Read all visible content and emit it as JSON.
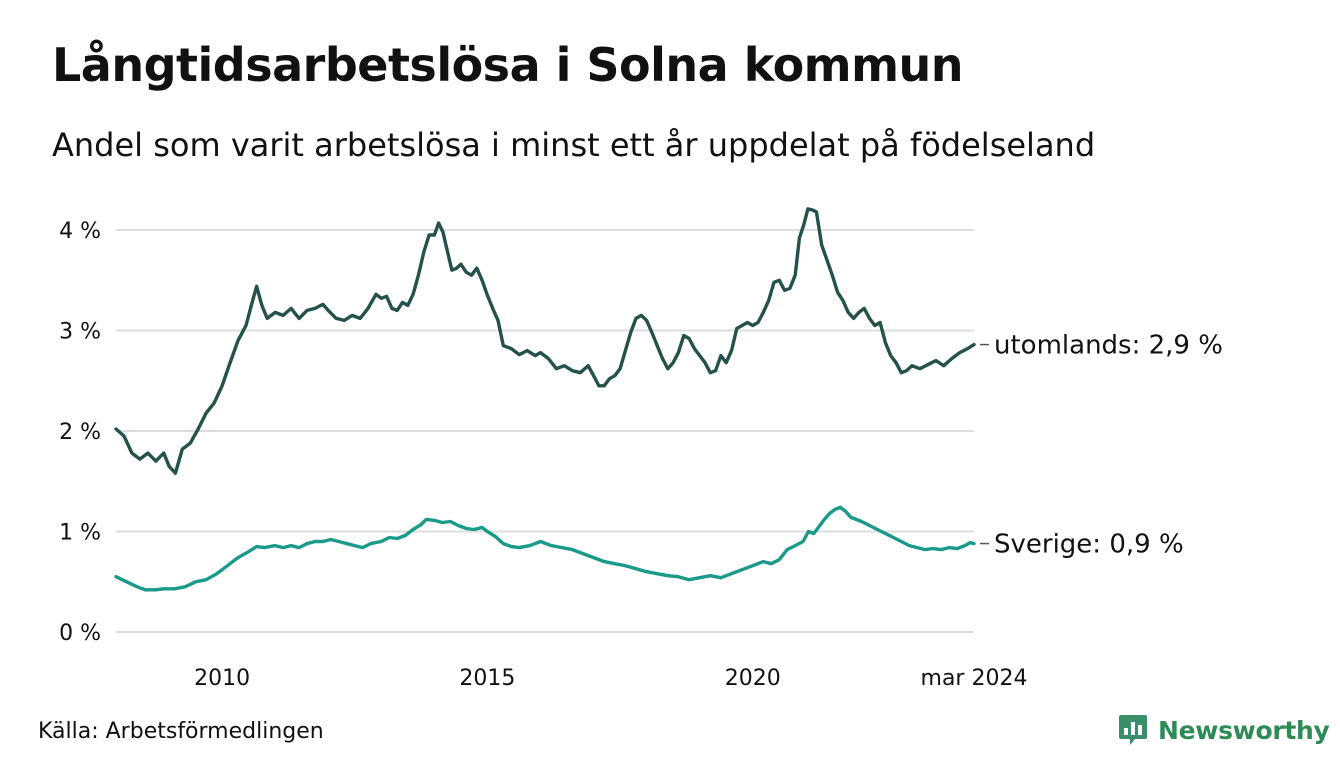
{
  "title": "Långtidsarbetslösa i Solna kommun",
  "subtitle": "Andel som varit arbetslösa i minst ett år uppdelat på födelseland",
  "source": "Källa: Arbetsförmedlingen",
  "brand": {
    "name": "Newsworthy",
    "icon": "newsworthy-logo-icon",
    "color": "#2e8b57"
  },
  "colors": {
    "utomlands": "#24524a",
    "sverige": "#1a9a88",
    "grid": "#dddddd",
    "text": "#111111"
  },
  "chart_data": {
    "type": "line",
    "title": "Långtidsarbetslösa i Solna kommun",
    "xlabel": "",
    "ylabel": "",
    "xlim": [
      2008.0,
      2024.17
    ],
    "ylim": [
      0,
      4
    ],
    "y_ticks": [
      {
        "value": 0,
        "label": "0 %"
      },
      {
        "value": 1,
        "label": "1 %"
      },
      {
        "value": 2,
        "label": "2 %"
      },
      {
        "value": 3,
        "label": "3 %"
      },
      {
        "value": 4,
        "label": "4 %"
      }
    ],
    "x_ticks": [
      {
        "value": 2010,
        "label": "2010"
      },
      {
        "value": 2015,
        "label": "2015"
      },
      {
        "value": 2020,
        "label": "2020"
      },
      {
        "value": 2024.17,
        "label": "mar 2024"
      }
    ],
    "grid": true,
    "series": [
      {
        "name": "utomlands",
        "end_label": "utomlands: 2,9 %",
        "color": "#24524a",
        "points": [
          [
            2008.0,
            2.02
          ],
          [
            2008.15,
            1.95
          ],
          [
            2008.3,
            1.78
          ],
          [
            2008.45,
            1.72
          ],
          [
            2008.6,
            1.78
          ],
          [
            2008.75,
            1.7
          ],
          [
            2008.9,
            1.78
          ],
          [
            2009.0,
            1.65
          ],
          [
            2009.12,
            1.58
          ],
          [
            2009.25,
            1.82
          ],
          [
            2009.4,
            1.88
          ],
          [
            2009.55,
            2.02
          ],
          [
            2009.7,
            2.18
          ],
          [
            2009.85,
            2.28
          ],
          [
            2010.0,
            2.45
          ],
          [
            2010.15,
            2.68
          ],
          [
            2010.3,
            2.9
          ],
          [
            2010.45,
            3.05
          ],
          [
            2010.55,
            3.25
          ],
          [
            2010.65,
            3.44
          ],
          [
            2010.75,
            3.25
          ],
          [
            2010.85,
            3.12
          ],
          [
            2011.0,
            3.18
          ],
          [
            2011.15,
            3.15
          ],
          [
            2011.3,
            3.22
          ],
          [
            2011.45,
            3.12
          ],
          [
            2011.6,
            3.2
          ],
          [
            2011.75,
            3.22
          ],
          [
            2011.9,
            3.26
          ],
          [
            2012.0,
            3.2
          ],
          [
            2012.15,
            3.12
          ],
          [
            2012.3,
            3.1
          ],
          [
            2012.45,
            3.15
          ],
          [
            2012.6,
            3.12
          ],
          [
            2012.75,
            3.22
          ],
          [
            2012.9,
            3.36
          ],
          [
            2013.0,
            3.32
          ],
          [
            2013.1,
            3.34
          ],
          [
            2013.2,
            3.22
          ],
          [
            2013.3,
            3.2
          ],
          [
            2013.4,
            3.28
          ],
          [
            2013.5,
            3.25
          ],
          [
            2013.6,
            3.36
          ],
          [
            2013.7,
            3.55
          ],
          [
            2013.8,
            3.78
          ],
          [
            2013.9,
            3.95
          ],
          [
            2014.0,
            3.95
          ],
          [
            2014.08,
            4.07
          ],
          [
            2014.16,
            3.98
          ],
          [
            2014.25,
            3.78
          ],
          [
            2014.33,
            3.6
          ],
          [
            2014.42,
            3.62
          ],
          [
            2014.5,
            3.66
          ],
          [
            2014.6,
            3.58
          ],
          [
            2014.7,
            3.55
          ],
          [
            2014.8,
            3.62
          ],
          [
            2014.9,
            3.5
          ],
          [
            2015.0,
            3.35
          ],
          [
            2015.1,
            3.22
          ],
          [
            2015.2,
            3.1
          ],
          [
            2015.3,
            2.85
          ],
          [
            2015.45,
            2.82
          ],
          [
            2015.6,
            2.76
          ],
          [
            2015.75,
            2.8
          ],
          [
            2015.9,
            2.75
          ],
          [
            2016.0,
            2.78
          ],
          [
            2016.15,
            2.72
          ],
          [
            2016.3,
            2.62
          ],
          [
            2016.45,
            2.65
          ],
          [
            2016.6,
            2.6
          ],
          [
            2016.75,
            2.58
          ],
          [
            2016.9,
            2.65
          ],
          [
            2017.0,
            2.55
          ],
          [
            2017.1,
            2.45
          ],
          [
            2017.2,
            2.45
          ],
          [
            2017.3,
            2.52
          ],
          [
            2017.4,
            2.55
          ],
          [
            2017.5,
            2.62
          ],
          [
            2017.6,
            2.8
          ],
          [
            2017.7,
            2.98
          ],
          [
            2017.8,
            3.12
          ],
          [
            2017.9,
            3.15
          ],
          [
            2018.0,
            3.1
          ],
          [
            2018.1,
            2.98
          ],
          [
            2018.2,
            2.85
          ],
          [
            2018.3,
            2.72
          ],
          [
            2018.4,
            2.62
          ],
          [
            2018.5,
            2.68
          ],
          [
            2018.6,
            2.78
          ],
          [
            2018.7,
            2.95
          ],
          [
            2018.8,
            2.92
          ],
          [
            2018.9,
            2.82
          ],
          [
            2019.0,
            2.75
          ],
          [
            2019.1,
            2.68
          ],
          [
            2019.2,
            2.58
          ],
          [
            2019.3,
            2.6
          ],
          [
            2019.4,
            2.75
          ],
          [
            2019.5,
            2.68
          ],
          [
            2019.6,
            2.8
          ],
          [
            2019.7,
            3.02
          ],
          [
            2019.8,
            3.05
          ],
          [
            2019.9,
            3.08
          ],
          [
            2020.0,
            3.05
          ],
          [
            2020.1,
            3.08
          ],
          [
            2020.2,
            3.18
          ],
          [
            2020.3,
            3.3
          ],
          [
            2020.4,
            3.48
          ],
          [
            2020.5,
            3.5
          ],
          [
            2020.6,
            3.4
          ],
          [
            2020.7,
            3.42
          ],
          [
            2020.8,
            3.55
          ],
          [
            2020.88,
            3.92
          ],
          [
            2020.96,
            4.05
          ],
          [
            2021.04,
            4.21
          ],
          [
            2021.12,
            4.2
          ],
          [
            2021.2,
            4.18
          ],
          [
            2021.3,
            3.85
          ],
          [
            2021.4,
            3.7
          ],
          [
            2021.5,
            3.55
          ],
          [
            2021.6,
            3.38
          ],
          [
            2021.7,
            3.3
          ],
          [
            2021.8,
            3.18
          ],
          [
            2021.9,
            3.12
          ],
          [
            2022.0,
            3.18
          ],
          [
            2022.1,
            3.22
          ],
          [
            2022.2,
            3.12
          ],
          [
            2022.3,
            3.05
          ],
          [
            2022.4,
            3.08
          ],
          [
            2022.5,
            2.88
          ],
          [
            2022.6,
            2.75
          ],
          [
            2022.7,
            2.68
          ],
          [
            2022.8,
            2.58
          ],
          [
            2022.9,
            2.6
          ],
          [
            2023.0,
            2.65
          ],
          [
            2023.15,
            2.62
          ],
          [
            2023.3,
            2.66
          ],
          [
            2023.45,
            2.7
          ],
          [
            2023.6,
            2.65
          ],
          [
            2023.75,
            2.72
          ],
          [
            2023.9,
            2.78
          ],
          [
            2024.05,
            2.82
          ],
          [
            2024.17,
            2.86
          ]
        ]
      },
      {
        "name": "Sverige",
        "end_label": "Sverige: 0,9 %",
        "color": "#1a9a88",
        "points": [
          [
            2008.0,
            0.55
          ],
          [
            2008.2,
            0.5
          ],
          [
            2008.4,
            0.45
          ],
          [
            2008.55,
            0.42
          ],
          [
            2008.75,
            0.42
          ],
          [
            2008.9,
            0.43
          ],
          [
            2009.1,
            0.43
          ],
          [
            2009.3,
            0.45
          ],
          [
            2009.5,
            0.5
          ],
          [
            2009.7,
            0.52
          ],
          [
            2009.9,
            0.58
          ],
          [
            2010.1,
            0.66
          ],
          [
            2010.3,
            0.74
          ],
          [
            2010.5,
            0.8
          ],
          [
            2010.65,
            0.85
          ],
          [
            2010.8,
            0.84
          ],
          [
            2011.0,
            0.86
          ],
          [
            2011.15,
            0.84
          ],
          [
            2011.3,
            0.86
          ],
          [
            2011.45,
            0.84
          ],
          [
            2011.6,
            0.88
          ],
          [
            2011.75,
            0.9
          ],
          [
            2011.9,
            0.9
          ],
          [
            2012.05,
            0.92
          ],
          [
            2012.2,
            0.9
          ],
          [
            2012.35,
            0.88
          ],
          [
            2012.5,
            0.86
          ],
          [
            2012.65,
            0.84
          ],
          [
            2012.8,
            0.88
          ],
          [
            2013.0,
            0.9
          ],
          [
            2013.15,
            0.94
          ],
          [
            2013.3,
            0.93
          ],
          [
            2013.45,
            0.96
          ],
          [
            2013.6,
            1.02
          ],
          [
            2013.75,
            1.07
          ],
          [
            2013.85,
            1.12
          ],
          [
            2014.0,
            1.11
          ],
          [
            2014.15,
            1.09
          ],
          [
            2014.3,
            1.1
          ],
          [
            2014.45,
            1.06
          ],
          [
            2014.6,
            1.03
          ],
          [
            2014.75,
            1.02
          ],
          [
            2014.9,
            1.04
          ],
          [
            2015.0,
            1.0
          ],
          [
            2015.15,
            0.95
          ],
          [
            2015.3,
            0.88
          ],
          [
            2015.45,
            0.85
          ],
          [
            2015.6,
            0.84
          ],
          [
            2015.8,
            0.86
          ],
          [
            2016.0,
            0.9
          ],
          [
            2016.2,
            0.86
          ],
          [
            2016.4,
            0.84
          ],
          [
            2016.6,
            0.82
          ],
          [
            2016.8,
            0.78
          ],
          [
            2017.0,
            0.74
          ],
          [
            2017.2,
            0.7
          ],
          [
            2017.4,
            0.68
          ],
          [
            2017.6,
            0.66
          ],
          [
            2017.8,
            0.63
          ],
          [
            2018.0,
            0.6
          ],
          [
            2018.2,
            0.58
          ],
          [
            2018.4,
            0.56
          ],
          [
            2018.6,
            0.55
          ],
          [
            2018.8,
            0.52
          ],
          [
            2019.0,
            0.54
          ],
          [
            2019.2,
            0.56
          ],
          [
            2019.4,
            0.54
          ],
          [
            2019.6,
            0.58
          ],
          [
            2019.8,
            0.62
          ],
          [
            2020.0,
            0.66
          ],
          [
            2020.2,
            0.7
          ],
          [
            2020.35,
            0.68
          ],
          [
            2020.5,
            0.72
          ],
          [
            2020.65,
            0.82
          ],
          [
            2020.8,
            0.86
          ],
          [
            2020.95,
            0.9
          ],
          [
            2021.05,
            1.0
          ],
          [
            2021.15,
            0.98
          ],
          [
            2021.25,
            1.05
          ],
          [
            2021.35,
            1.12
          ],
          [
            2021.45,
            1.18
          ],
          [
            2021.55,
            1.22
          ],
          [
            2021.65,
            1.24
          ],
          [
            2021.75,
            1.2
          ],
          [
            2021.85,
            1.14
          ],
          [
            2021.95,
            1.12
          ],
          [
            2022.05,
            1.1
          ],
          [
            2022.2,
            1.06
          ],
          [
            2022.35,
            1.02
          ],
          [
            2022.5,
            0.98
          ],
          [
            2022.65,
            0.94
          ],
          [
            2022.8,
            0.9
          ],
          [
            2022.95,
            0.86
          ],
          [
            2023.1,
            0.84
          ],
          [
            2023.25,
            0.82
          ],
          [
            2023.4,
            0.83
          ],
          [
            2023.55,
            0.82
          ],
          [
            2023.7,
            0.84
          ],
          [
            2023.85,
            0.83
          ],
          [
            2024.0,
            0.86
          ],
          [
            2024.1,
            0.89
          ],
          [
            2024.17,
            0.88
          ]
        ]
      }
    ]
  }
}
